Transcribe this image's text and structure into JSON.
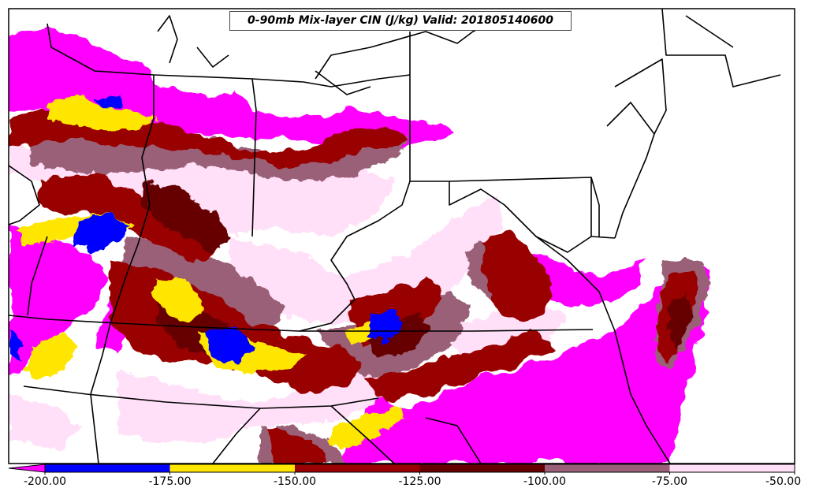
{
  "title": "0-90mb Mix-layer CIN (J/kg) Valid: 201805140600",
  "colorbar": {
    "extend": "min",
    "ticks": [
      "-200.00",
      "-175.00",
      "-150.00",
      "-125.00",
      "-100.00",
      "-75.00",
      "-50.00"
    ],
    "bins": [
      {
        "from": -200,
        "to": -175,
        "color": "#0000ff"
      },
      {
        "from": -175,
        "to": -150,
        "color": "#ffe600"
      },
      {
        "from": -150,
        "to": -125,
        "color": "#990000"
      },
      {
        "from": -125,
        "to": -100,
        "color": "#660000"
      },
      {
        "from": -100,
        "to": -75,
        "color": "#9a6077"
      },
      {
        "from": -75,
        "to": -50,
        "color": "#ffe0f8"
      }
    ],
    "under_color": "#ff00ff"
  },
  "colors": {
    "strong_cin": "#ff00ff",
    "weak_cin": "#ffe0f8",
    "boundaries": "#000000",
    "background": "#ffffff"
  }
}
